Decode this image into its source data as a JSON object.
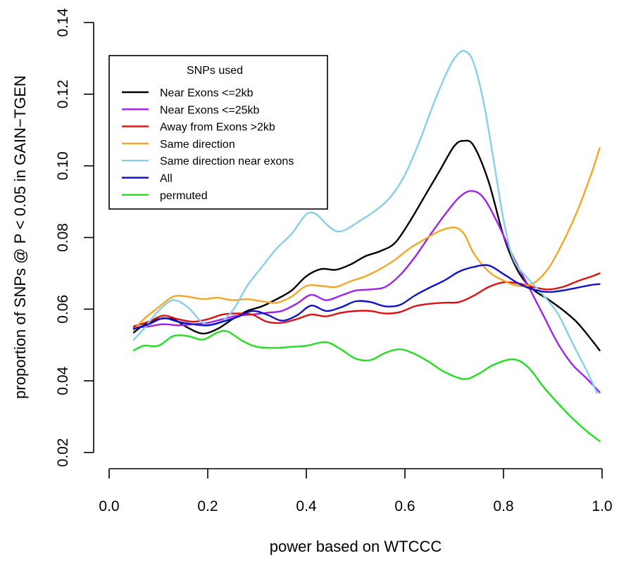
{
  "chart_data": {
    "type": "line",
    "title": "",
    "xlabel": "power based on WTCCC",
    "ylabel": "proportion of SNPs @ P < 0.05 in GAIN−TGEN",
    "xlim": [
      0.0,
      1.0
    ],
    "ylim": [
      0.02,
      0.14
    ],
    "x_ticks": [
      "0.0",
      "0.2",
      "0.4",
      "0.6",
      "0.8",
      "1.0"
    ],
    "y_ticks": [
      "0.02",
      "0.04",
      "0.06",
      "0.08",
      "0.10",
      "0.12",
      "0.14"
    ],
    "grid": false,
    "legend": {
      "title": "SNPs used",
      "placement": "top-left"
    },
    "series": [
      {
        "name": "Near Exons <=2kb",
        "color": "#000000",
        "points": [
          [
            0.05,
            0.0535
          ],
          [
            0.07,
            0.0555
          ],
          [
            0.1,
            0.0572
          ],
          [
            0.13,
            0.0572
          ],
          [
            0.16,
            0.0548
          ],
          [
            0.19,
            0.0532
          ],
          [
            0.22,
            0.0545
          ],
          [
            0.25,
            0.0572
          ],
          [
            0.28,
            0.0595
          ],
          [
            0.31,
            0.0608
          ],
          [
            0.34,
            0.0628
          ],
          [
            0.37,
            0.0652
          ],
          [
            0.4,
            0.0692
          ],
          [
            0.43,
            0.0712
          ],
          [
            0.46,
            0.071
          ],
          [
            0.49,
            0.0725
          ],
          [
            0.52,
            0.0748
          ],
          [
            0.55,
            0.0762
          ],
          [
            0.58,
            0.0785
          ],
          [
            0.61,
            0.0845
          ],
          [
            0.64,
            0.0915
          ],
          [
            0.67,
            0.0985
          ],
          [
            0.7,
            0.1055
          ],
          [
            0.72,
            0.107
          ],
          [
            0.74,
            0.1055
          ],
          [
            0.77,
            0.0955
          ],
          [
            0.8,
            0.0805
          ],
          [
            0.83,
            0.0705
          ],
          [
            0.86,
            0.0655
          ],
          [
            0.89,
            0.0628
          ],
          [
            0.92,
            0.0598
          ],
          [
            0.95,
            0.0562
          ],
          [
            0.98,
            0.0512
          ],
          [
            0.995,
            0.0485
          ]
        ]
      },
      {
        "name": "Near Exons <=25kb",
        "color": "#a020f0",
        "points": [
          [
            0.05,
            0.0548
          ],
          [
            0.08,
            0.0552
          ],
          [
            0.11,
            0.0558
          ],
          [
            0.14,
            0.0555
          ],
          [
            0.17,
            0.0558
          ],
          [
            0.2,
            0.0562
          ],
          [
            0.23,
            0.0572
          ],
          [
            0.26,
            0.0582
          ],
          [
            0.29,
            0.0585
          ],
          [
            0.32,
            0.059
          ],
          [
            0.35,
            0.0595
          ],
          [
            0.38,
            0.0615
          ],
          [
            0.41,
            0.064
          ],
          [
            0.44,
            0.0625
          ],
          [
            0.47,
            0.0638
          ],
          [
            0.5,
            0.0652
          ],
          [
            0.53,
            0.0655
          ],
          [
            0.56,
            0.0662
          ],
          [
            0.59,
            0.0695
          ],
          [
            0.62,
            0.0745
          ],
          [
            0.65,
            0.0805
          ],
          [
            0.68,
            0.0862
          ],
          [
            0.71,
            0.0912
          ],
          [
            0.735,
            0.093
          ],
          [
            0.76,
            0.091
          ],
          [
            0.79,
            0.0835
          ],
          [
            0.82,
            0.0745
          ],
          [
            0.85,
            0.0665
          ],
          [
            0.88,
            0.0585
          ],
          [
            0.91,
            0.0505
          ],
          [
            0.94,
            0.0445
          ],
          [
            0.97,
            0.0405
          ],
          [
            0.995,
            0.0368
          ]
        ]
      },
      {
        "name": "Away from Exons >2kb",
        "color": "#e01010",
        "points": [
          [
            0.05,
            0.0552
          ],
          [
            0.08,
            0.0565
          ],
          [
            0.11,
            0.0582
          ],
          [
            0.14,
            0.0572
          ],
          [
            0.17,
            0.0565
          ],
          [
            0.2,
            0.0572
          ],
          [
            0.23,
            0.0585
          ],
          [
            0.26,
            0.0588
          ],
          [
            0.29,
            0.0585
          ],
          [
            0.32,
            0.0565
          ],
          [
            0.35,
            0.0562
          ],
          [
            0.38,
            0.0572
          ],
          [
            0.41,
            0.0585
          ],
          [
            0.44,
            0.058
          ],
          [
            0.47,
            0.059
          ],
          [
            0.5,
            0.0595
          ],
          [
            0.53,
            0.0595
          ],
          [
            0.56,
            0.0588
          ],
          [
            0.59,
            0.0592
          ],
          [
            0.62,
            0.0608
          ],
          [
            0.65,
            0.0615
          ],
          [
            0.68,
            0.0618
          ],
          [
            0.71,
            0.062
          ],
          [
            0.74,
            0.0638
          ],
          [
            0.77,
            0.0662
          ],
          [
            0.8,
            0.0675
          ],
          [
            0.83,
            0.0672
          ],
          [
            0.86,
            0.0662
          ],
          [
            0.89,
            0.0655
          ],
          [
            0.92,
            0.0662
          ],
          [
            0.95,
            0.0678
          ],
          [
            0.98,
            0.0692
          ],
          [
            0.995,
            0.07
          ]
        ]
      },
      {
        "name": "Same direction",
        "color": "#f5a623",
        "points": [
          [
            0.05,
            0.0542
          ],
          [
            0.07,
            0.0572
          ],
          [
            0.1,
            0.0605
          ],
          [
            0.13,
            0.0635
          ],
          [
            0.16,
            0.0635
          ],
          [
            0.19,
            0.0628
          ],
          [
            0.22,
            0.0632
          ],
          [
            0.25,
            0.0625
          ],
          [
            0.28,
            0.0628
          ],
          [
            0.31,
            0.0622
          ],
          [
            0.34,
            0.0618
          ],
          [
            0.37,
            0.0635
          ],
          [
            0.4,
            0.0665
          ],
          [
            0.43,
            0.0665
          ],
          [
            0.46,
            0.0662
          ],
          [
            0.49,
            0.0678
          ],
          [
            0.52,
            0.0692
          ],
          [
            0.55,
            0.0712
          ],
          [
            0.58,
            0.0738
          ],
          [
            0.61,
            0.077
          ],
          [
            0.64,
            0.0795
          ],
          [
            0.67,
            0.0818
          ],
          [
            0.7,
            0.0828
          ],
          [
            0.72,
            0.081
          ],
          [
            0.74,
            0.0755
          ],
          [
            0.77,
            0.0705
          ],
          [
            0.8,
            0.068
          ],
          [
            0.83,
            0.0665
          ],
          [
            0.86,
            0.0672
          ],
          [
            0.89,
            0.0712
          ],
          [
            0.92,
            0.0785
          ],
          [
            0.95,
            0.0875
          ],
          [
            0.98,
            0.0985
          ],
          [
            0.995,
            0.105
          ]
        ]
      },
      {
        "name": "Same direction near exons",
        "color": "#87ceeb",
        "points": [
          [
            0.05,
            0.0515
          ],
          [
            0.07,
            0.0545
          ],
          [
            0.1,
            0.0595
          ],
          [
            0.13,
            0.0625
          ],
          [
            0.16,
            0.0605
          ],
          [
            0.19,
            0.0562
          ],
          [
            0.22,
            0.056
          ],
          [
            0.25,
            0.0595
          ],
          [
            0.28,
            0.0665
          ],
          [
            0.31,
            0.0718
          ],
          [
            0.34,
            0.077
          ],
          [
            0.37,
            0.081
          ],
          [
            0.4,
            0.0865
          ],
          [
            0.42,
            0.0865
          ],
          [
            0.44,
            0.0838
          ],
          [
            0.46,
            0.0818
          ],
          [
            0.48,
            0.0822
          ],
          [
            0.51,
            0.0848
          ],
          [
            0.54,
            0.0875
          ],
          [
            0.57,
            0.0912
          ],
          [
            0.6,
            0.0975
          ],
          [
            0.63,
            0.107
          ],
          [
            0.66,
            0.118
          ],
          [
            0.69,
            0.1275
          ],
          [
            0.71,
            0.1315
          ],
          [
            0.725,
            0.1318
          ],
          [
            0.74,
            0.1285
          ],
          [
            0.76,
            0.1175
          ],
          [
            0.78,
            0.1015
          ],
          [
            0.8,
            0.085
          ],
          [
            0.82,
            0.074
          ],
          [
            0.85,
            0.0685
          ],
          [
            0.88,
            0.064
          ],
          [
            0.91,
            0.0588
          ],
          [
            0.94,
            0.0505
          ],
          [
            0.97,
            0.0425
          ],
          [
            0.99,
            0.0365
          ]
        ]
      },
      {
        "name": "All",
        "color": "#1010d0",
        "points": [
          [
            0.05,
            0.0545
          ],
          [
            0.08,
            0.0558
          ],
          [
            0.11,
            0.0575
          ],
          [
            0.14,
            0.0565
          ],
          [
            0.17,
            0.0558
          ],
          [
            0.2,
            0.0555
          ],
          [
            0.23,
            0.0565
          ],
          [
            0.26,
            0.0578
          ],
          [
            0.29,
            0.0595
          ],
          [
            0.32,
            0.0585
          ],
          [
            0.35,
            0.0568
          ],
          [
            0.38,
            0.0582
          ],
          [
            0.41,
            0.061
          ],
          [
            0.44,
            0.0595
          ],
          [
            0.47,
            0.0605
          ],
          [
            0.5,
            0.0622
          ],
          [
            0.53,
            0.062
          ],
          [
            0.56,
            0.0608
          ],
          [
            0.59,
            0.0612
          ],
          [
            0.62,
            0.0638
          ],
          [
            0.65,
            0.066
          ],
          [
            0.68,
            0.068
          ],
          [
            0.71,
            0.0705
          ],
          [
            0.74,
            0.0718
          ],
          [
            0.77,
            0.0722
          ],
          [
            0.8,
            0.0698
          ],
          [
            0.83,
            0.0672
          ],
          [
            0.86,
            0.0655
          ],
          [
            0.89,
            0.0648
          ],
          [
            0.92,
            0.0652
          ],
          [
            0.95,
            0.066
          ],
          [
            0.98,
            0.0668
          ],
          [
            0.995,
            0.067
          ]
        ]
      },
      {
        "name": "permuted",
        "color": "#20e020",
        "points": [
          [
            0.05,
            0.0485
          ],
          [
            0.07,
            0.0498
          ],
          [
            0.1,
            0.0498
          ],
          [
            0.13,
            0.0525
          ],
          [
            0.16,
            0.0525
          ],
          [
            0.19,
            0.0515
          ],
          [
            0.22,
            0.0535
          ],
          [
            0.24,
            0.0538
          ],
          [
            0.27,
            0.0512
          ],
          [
            0.3,
            0.0495
          ],
          [
            0.34,
            0.0492
          ],
          [
            0.37,
            0.0495
          ],
          [
            0.4,
            0.0498
          ],
          [
            0.44,
            0.0508
          ],
          [
            0.47,
            0.0488
          ],
          [
            0.5,
            0.0462
          ],
          [
            0.53,
            0.0458
          ],
          [
            0.56,
            0.0478
          ],
          [
            0.59,
            0.0488
          ],
          [
            0.62,
            0.0475
          ],
          [
            0.65,
            0.0452
          ],
          [
            0.68,
            0.0425
          ],
          [
            0.72,
            0.0405
          ],
          [
            0.75,
            0.042
          ],
          [
            0.78,
            0.0445
          ],
          [
            0.82,
            0.046
          ],
          [
            0.85,
            0.0438
          ],
          [
            0.88,
            0.0385
          ],
          [
            0.91,
            0.0338
          ],
          [
            0.94,
            0.0295
          ],
          [
            0.97,
            0.0258
          ],
          [
            0.995,
            0.0232
          ]
        ]
      }
    ]
  }
}
